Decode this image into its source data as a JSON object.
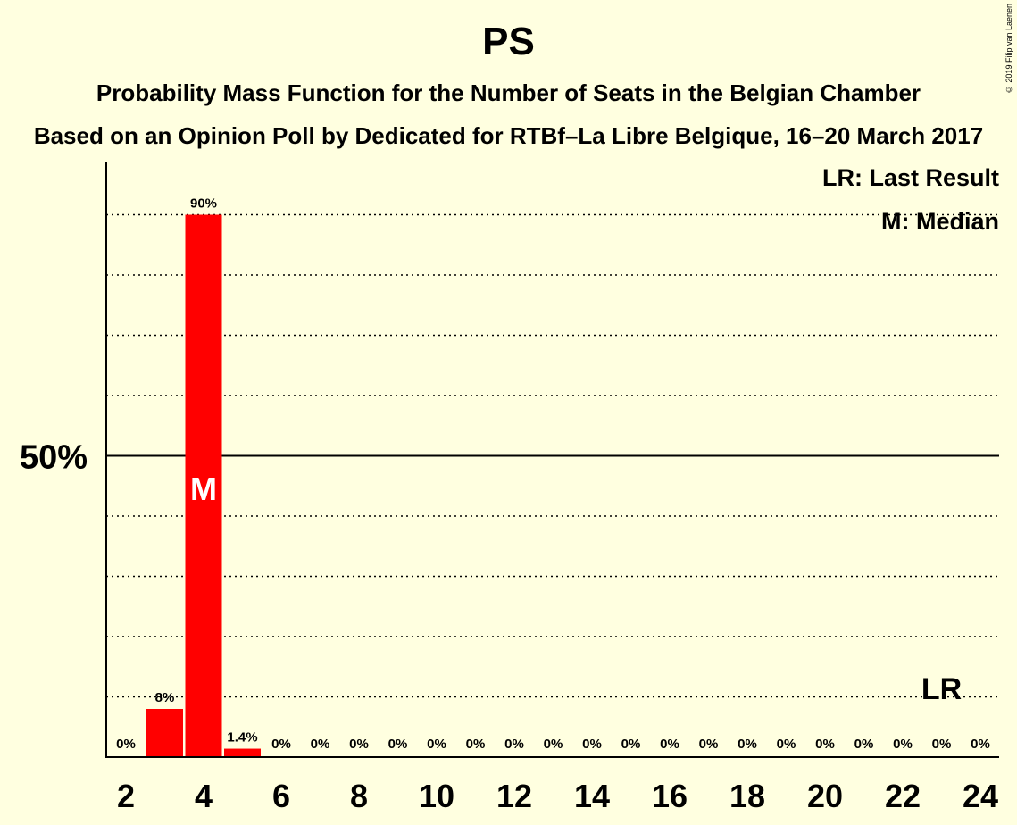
{
  "header": {
    "title": "PS",
    "subtitle_1": "Probability Mass Function for the Number of Seats in the Belgian Chamber",
    "subtitle_2": "Based on an Opinion Poll by Dedicated for RTBf–La Libre Belgique, 16–20 March 2017",
    "copyright": "© 2019 Filip van Laenen"
  },
  "legend": {
    "last_result": "LR: Last Result",
    "median": "M: Median"
  },
  "colors": {
    "background": "#ffffe0",
    "bar": "#ff0000",
    "text": "#000000"
  },
  "chart_data": {
    "type": "bar",
    "title": "PS",
    "x": [
      2,
      3,
      4,
      5,
      6,
      7,
      8,
      9,
      10,
      11,
      12,
      13,
      14,
      15,
      16,
      17,
      18,
      19,
      20,
      21,
      22,
      23,
      24
    ],
    "values": [
      0,
      8,
      90,
      1.4,
      0,
      0,
      0,
      0,
      0,
      0,
      0,
      0,
      0,
      0,
      0,
      0,
      0,
      0,
      0,
      0,
      0,
      0,
      0
    ],
    "value_labels": [
      "0%",
      "8%",
      "90%",
      "1.4%",
      "0%",
      "0%",
      "0%",
      "0%",
      "0%",
      "0%",
      "0%",
      "0%",
      "0%",
      "0%",
      "0%",
      "0%",
      "0%",
      "0%",
      "0%",
      "0%",
      "0%",
      "0%",
      "0%"
    ],
    "x_tick_labels": [
      "2",
      "4",
      "6",
      "8",
      "10",
      "12",
      "14",
      "16",
      "18",
      "20",
      "22",
      "24"
    ],
    "y_tick_label": "50%",
    "y_tick_value": 50,
    "ylim": [
      0,
      98
    ],
    "dotted_gridlines": [
      10,
      20,
      30,
      40,
      60,
      70,
      80,
      90
    ],
    "median_seat": 4,
    "median_marker": "M",
    "last_result_seat": 23,
    "last_result_marker": "LR",
    "grid": true,
    "legend_position": "top-right"
  }
}
